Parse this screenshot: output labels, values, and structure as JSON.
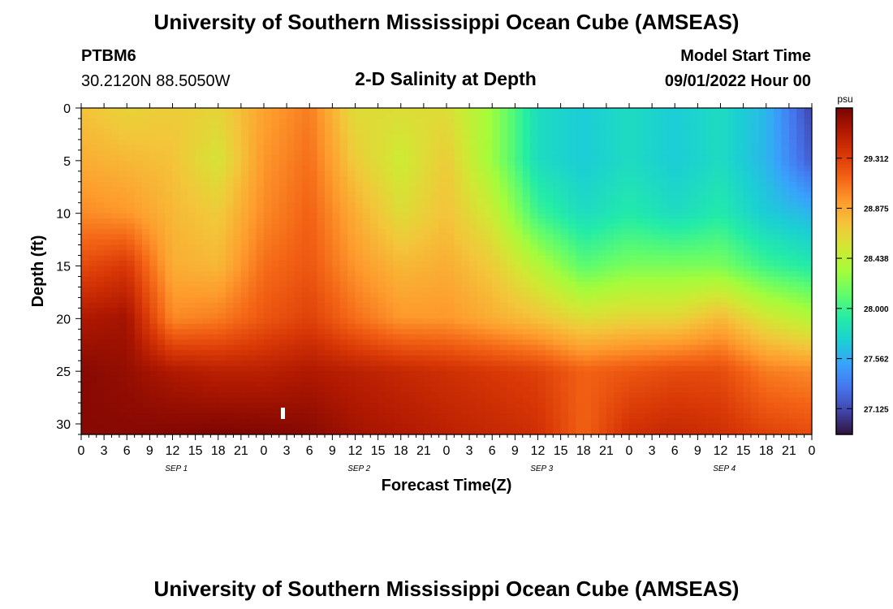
{
  "header": {
    "title": "University of Southern Mississippi Ocean Cube (AMSEAS)",
    "station": "PTBM6",
    "location": "30.2120N  88.5050W",
    "subtitle": "2-D Salinity at Depth",
    "model_start_label": "Model Start Time",
    "model_start_value": "09/01/2022 Hour 00"
  },
  "footer": {
    "title": "University of Southern Mississippi Ocean Cube (AMSEAS)"
  },
  "chart_data": {
    "type": "heatmap",
    "xlabel": "Forecast Time(Z)",
    "ylabel": "Depth (ft)",
    "x_hours_range": [
      0,
      96
    ],
    "x_tick_labels": [
      "0",
      "3",
      "6",
      "9",
      "12",
      "15",
      "18",
      "21",
      "0",
      "3",
      "6",
      "9",
      "12",
      "15",
      "18",
      "21",
      "0",
      "3",
      "6",
      "9",
      "12",
      "15",
      "18",
      "21",
      "0",
      "3",
      "6",
      "9",
      "12",
      "15",
      "18",
      "21",
      "0"
    ],
    "day_labels": [
      "SEP 1",
      "SEP 2",
      "SEP 3",
      "SEP 4"
    ],
    "y_ticks": [
      0,
      5,
      10,
      15,
      20,
      25,
      30
    ],
    "ylim": [
      0,
      31
    ],
    "y_inverted": true,
    "colorbar": {
      "unit": "psu",
      "range": [
        26.9,
        29.75
      ],
      "ticks": [
        29.312,
        28.875,
        28.438,
        28.0,
        27.562,
        27.125
      ],
      "colors": [
        "#30123b",
        "#4145ab",
        "#4675ed",
        "#39a2fc",
        "#1bcfd4",
        "#24eca6",
        "#61fc6c",
        "#a4fc3b",
        "#d1e834",
        "#f3c63a",
        "#fe9b2d",
        "#f36315",
        "#d93806",
        "#b11901",
        "#7a0402"
      ]
    },
    "salinity_grid": {
      "hours": [
        0,
        6,
        12,
        18,
        24,
        30,
        36,
        42,
        48,
        54,
        60,
        66,
        72,
        78,
        84,
        90,
        96
      ],
      "depths": [
        0,
        5,
        10,
        15,
        20,
        25,
        31
      ],
      "values": [
        [
          28.75,
          28.65,
          28.7,
          28.65,
          28.9,
          29.05,
          28.6,
          28.6,
          28.6,
          28.3,
          27.8,
          27.7,
          27.8,
          27.7,
          27.8,
          27.6,
          27.1
        ],
        [
          28.85,
          28.8,
          28.75,
          28.55,
          28.95,
          29.1,
          28.7,
          28.5,
          28.7,
          28.3,
          27.8,
          27.7,
          27.8,
          27.7,
          27.8,
          27.6,
          27.2
        ],
        [
          29.0,
          28.95,
          28.8,
          28.7,
          29.0,
          29.15,
          28.85,
          28.6,
          28.75,
          28.5,
          28.0,
          27.8,
          27.9,
          27.8,
          27.9,
          27.7,
          27.6
        ],
        [
          29.25,
          29.35,
          28.85,
          28.8,
          29.1,
          29.2,
          28.95,
          28.8,
          28.85,
          28.7,
          28.4,
          28.1,
          28.2,
          28.2,
          28.2,
          28.0,
          27.9
        ],
        [
          29.55,
          29.6,
          29.0,
          29.05,
          29.2,
          29.3,
          29.1,
          28.95,
          28.95,
          28.85,
          28.75,
          28.6,
          28.65,
          28.65,
          28.8,
          28.55,
          28.4
        ],
        [
          29.7,
          29.65,
          29.55,
          29.5,
          29.5,
          29.55,
          29.5,
          29.45,
          29.4,
          29.35,
          29.3,
          29.15,
          29.2,
          29.25,
          29.25,
          29.05,
          29.0
        ],
        [
          29.7,
          29.7,
          29.72,
          29.74,
          29.73,
          29.7,
          29.6,
          29.55,
          29.5,
          29.45,
          29.4,
          29.15,
          29.4,
          29.45,
          29.4,
          29.3,
          29.25
        ]
      ]
    }
  }
}
